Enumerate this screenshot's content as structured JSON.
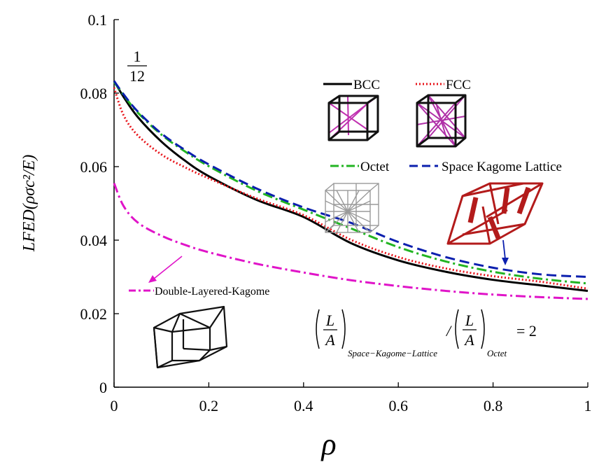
{
  "chart_data": {
    "type": "line",
    "xlabel": "ρ",
    "ylabel": "LFED(ρσc²/E)",
    "xlim": [
      0,
      1
    ],
    "ylim": [
      0,
      0.1
    ],
    "xticks": [
      "0",
      "0.2",
      "0.4",
      "0.6",
      "0.8",
      "1"
    ],
    "yticks": [
      "0",
      "0.02",
      "0.04",
      "0.06",
      "0.08",
      "0.1"
    ],
    "grid": false,
    "x": [
      0,
      0.02,
      0.05,
      0.1,
      0.15,
      0.2,
      0.3,
      0.4,
      0.5,
      0.6,
      0.7,
      0.8,
      0.9,
      1.0
    ],
    "series": [
      {
        "name": "BCC",
        "color": "#000000",
        "dash": "solid",
        "values": [
          0.0833,
          0.079,
          0.0735,
          0.0668,
          0.0616,
          0.0574,
          0.051,
          0.0463,
          0.0392,
          0.0345,
          0.0314,
          0.0292,
          0.0277,
          0.0262
        ]
      },
      {
        "name": "FCC",
        "color": "#e8141a",
        "dash": "dotted",
        "values": [
          0.0815,
          0.074,
          0.0685,
          0.0633,
          0.0598,
          0.0568,
          0.0514,
          0.0468,
          0.0401,
          0.0354,
          0.0323,
          0.0302,
          0.0287,
          0.0268
        ]
      },
      {
        "name": "Octet",
        "color": "#22b422",
        "dash": "dashdot",
        "values": [
          0.083,
          0.0795,
          0.0747,
          0.0687,
          0.0641,
          0.0601,
          0.0535,
          0.0483,
          0.0432,
          0.0381,
          0.0342,
          0.0314,
          0.0295,
          0.0282
        ]
      },
      {
        "name": "Space Kagome Lattice",
        "color": "#0b1fae",
        "dash": "dashed",
        "values": [
          0.0833,
          0.0797,
          0.075,
          0.069,
          0.0645,
          0.0606,
          0.0541,
          0.0489,
          0.0447,
          0.0395,
          0.0354,
          0.0325,
          0.0307,
          0.03
        ]
      },
      {
        "name": "Double-Layered-Kagome",
        "color": "#e014c8",
        "dash": "dashdot",
        "values": [
          0.0555,
          0.0493,
          0.0448,
          0.0412,
          0.0387,
          0.0367,
          0.0336,
          0.0312,
          0.0291,
          0.0275,
          0.0262,
          0.0252,
          0.0245,
          0.024
        ]
      }
    ],
    "annotations": {
      "fraction_numerator": "1",
      "fraction_denominator": "12",
      "ratio_numerator": "L",
      "ratio_denominator": "A",
      "ratio_sub1": "Space−Kagome−Lattice",
      "ratio_sub2": "Octet",
      "ratio_slash": "/",
      "ratio_value": "= 2"
    }
  }
}
